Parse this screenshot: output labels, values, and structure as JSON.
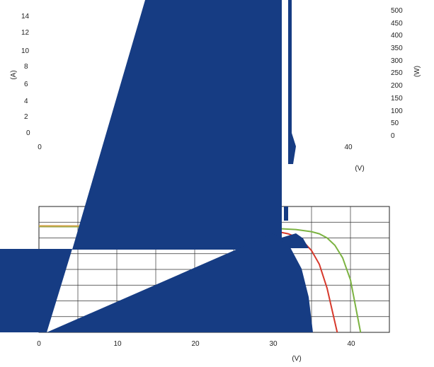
{
  "chart_data": [
    {
      "type": "line",
      "title": "",
      "ylabel_left": "(A)",
      "ylabel_right": "(W)",
      "xlabel": "(V)",
      "x_ticks": [
        "0",
        "40"
      ],
      "y_left_ticks": [
        "0",
        "2",
        "4",
        "6",
        "8",
        "10",
        "12",
        "14"
      ],
      "y_right_ticks": [
        "0",
        "50",
        "100",
        "150",
        "200",
        "250",
        "300",
        "350",
        "400",
        "450",
        "500"
      ],
      "ylim_left": [
        0,
        14
      ],
      "ylim_right": [
        0,
        500
      ],
      "grid": false,
      "series": []
    },
    {
      "type": "line",
      "title": "",
      "xlabel": "(V)",
      "x_ticks": [
        "0",
        "10",
        "20",
        "30",
        "40"
      ],
      "xlim": [
        0,
        45
      ],
      "grid": true,
      "series": [
        {
          "color": "#d7392c",
          "x": [
            0,
            5,
            10,
            15,
            20,
            25,
            28,
            30,
            32,
            33,
            34,
            35,
            36,
            37,
            38.3
          ],
          "y": [
            10.1,
            10.08,
            10.06,
            10.04,
            10.01,
            9.95,
            9.85,
            9.7,
            9.4,
            9.1,
            8.6,
            7.8,
            6.5,
            4.2,
            0
          ]
        },
        {
          "color": "#7cb342",
          "x": [
            0,
            5,
            10,
            15,
            20,
            25,
            30,
            33,
            35,
            36,
            37,
            38,
            39,
            40,
            41.3
          ],
          "y": [
            10.1,
            10.08,
            10.06,
            10.04,
            10.02,
            10.0,
            9.92,
            9.8,
            9.6,
            9.4,
            9.0,
            8.3,
            7.1,
            5.0,
            0
          ]
        },
        {
          "color": "#d4a24c",
          "x": [
            0,
            30
          ],
          "y": [
            10.15,
            10.1
          ]
        }
      ]
    }
  ]
}
